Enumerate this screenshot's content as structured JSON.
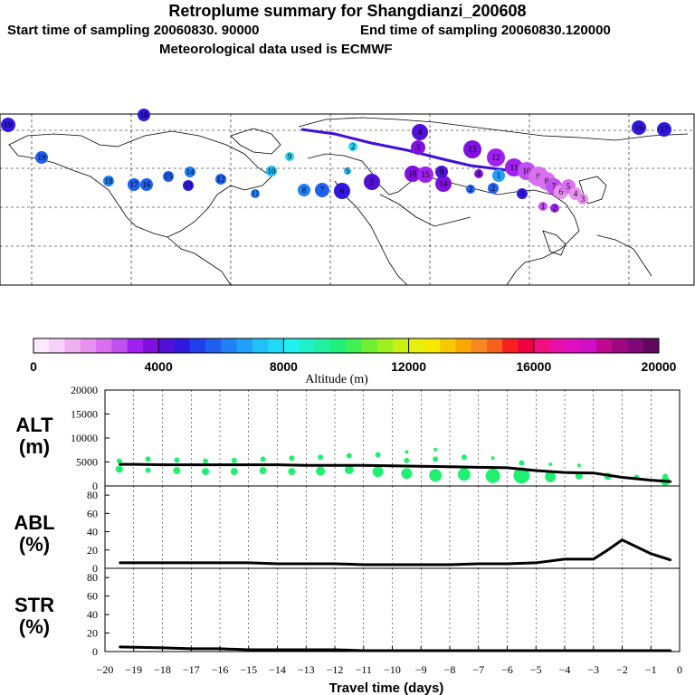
{
  "header": {
    "title": "Retroplume summary for Shangdianzi_200608",
    "start_label": "Start time of sampling 20060830. 90000",
    "end_label": "End time of sampling 20060830.120000",
    "met_label": "Meteorological data used is ECMWF"
  },
  "colorbar": {
    "label": "Altitude (m)",
    "ticks": [
      "0",
      "4000",
      "8000",
      "12000",
      "16000",
      "20000"
    ],
    "colors": [
      "#fde8fd",
      "#f9d0f9",
      "#f0b0f0",
      "#e890f0",
      "#d870f0",
      "#c050f0",
      "#a020f0",
      "#8010e0",
      "#5010d8",
      "#3018e0",
      "#2040f0",
      "#2060f0",
      "#2080f8",
      "#20a0f8",
      "#20c0f8",
      "#20d8f8",
      "#20f0f0",
      "#20f0c8",
      "#20f0a0",
      "#20f078",
      "#40f050",
      "#70f030",
      "#a0f020",
      "#c8f010",
      "#e8f010",
      "#f8e800",
      "#f8c800",
      "#f8a800",
      "#f88820",
      "#f86020",
      "#f82020",
      "#f00040",
      "#f01080",
      "#e810a8",
      "#e010c0",
      "#d010c8",
      "#c00890",
      "#a00880",
      "#800878",
      "#600860"
    ]
  },
  "map_labels": {
    "numbers": [
      "20",
      "19",
      "18",
      "17",
      "16",
      "15",
      "14",
      "13",
      "12",
      "11",
      "10",
      "9",
      "8",
      "7",
      "6",
      "5",
      "4",
      "3",
      "2",
      "1"
    ]
  },
  "chart_data": [
    {
      "type": "line",
      "panel": "ALT",
      "ylabel": "ALT\n(m)",
      "ylabel_line1": "ALT",
      "ylabel_line2": "(m)",
      "ylim": [
        0,
        20000
      ],
      "yticks": [
        "0",
        "5000",
        "10000",
        "15000",
        "20000"
      ],
      "x": [
        -19.5,
        -19,
        -18,
        -17,
        -16,
        -15,
        -14,
        -13,
        -12,
        -11,
        -10,
        -9,
        -8,
        -7,
        -6,
        -5,
        -4,
        -3,
        -2,
        -1,
        -0.3
      ],
      "values": [
        4500,
        4500,
        4400,
        4400,
        4400,
        4400,
        4400,
        4300,
        4300,
        4300,
        4200,
        4100,
        4000,
        3900,
        3800,
        3200,
        2800,
        2700,
        1800,
        1200,
        900
      ],
      "scatter_x": [
        -19.5,
        -19.5,
        -18.5,
        -18.5,
        -17.5,
        -17.5,
        -16.5,
        -16.5,
        -15.5,
        -15.5,
        -14.5,
        -14.5,
        -13.5,
        -13.5,
        -12.5,
        -12.5,
        -11.5,
        -11.5,
        -10.5,
        -10.5,
        -9.5,
        -9.5,
        -9.5,
        -8.5,
        -8.5,
        -8.5,
        -7.5,
        -7.5,
        -6.5,
        -6.5,
        -5.5,
        -5.5,
        -4.5,
        -4.5,
        -3.5,
        -3.5,
        -2.5,
        -1.5,
        -0.5,
        -0.5
      ],
      "scatter_y": [
        3500,
        5200,
        3300,
        5600,
        3200,
        5400,
        3000,
        5200,
        3000,
        5300,
        3200,
        5600,
        3000,
        5800,
        3100,
        6000,
        3400,
        6300,
        3000,
        6500,
        2600,
        5300,
        7100,
        2200,
        5600,
        7600,
        2400,
        6000,
        2100,
        5800,
        2200,
        4800,
        1900,
        4500,
        2100,
        4300,
        2000,
        1800,
        1000,
        2000
      ],
      "scatter_r": [
        4,
        3,
        3,
        3,
        4,
        3,
        4,
        3,
        4,
        3,
        4,
        3,
        4,
        3,
        5,
        3,
        5,
        3,
        6,
        3,
        6,
        3,
        2,
        7,
        3,
        2,
        7,
        3,
        8,
        2,
        9,
        3,
        6,
        2,
        4,
        2,
        4,
        3,
        5,
        3
      ]
    },
    {
      "type": "line",
      "panel": "ABL",
      "ylabel_line1": "ABL",
      "ylabel_line2": "(%)",
      "ylim": [
        0,
        90
      ],
      "yticks": [
        "0",
        "20",
        "40",
        "60",
        "80"
      ],
      "x": [
        -19.5,
        -18,
        -17,
        -16,
        -15,
        -14,
        -13,
        -12,
        -11,
        -10,
        -9,
        -8,
        -7,
        -6,
        -5,
        -4,
        -3,
        -2.5,
        -2,
        -1,
        -0.3
      ],
      "values": [
        6,
        6,
        6,
        6,
        6,
        5,
        5,
        5,
        4,
        4,
        4,
        4,
        5,
        5,
        6,
        10,
        10,
        20,
        31,
        16,
        9
      ]
    },
    {
      "type": "line",
      "panel": "STR",
      "ylabel_line1": "STR",
      "ylabel_line2": "(%)",
      "ylim": [
        0,
        90
      ],
      "yticks": [
        "0",
        "20",
        "40",
        "60",
        "80"
      ],
      "x": [
        -19.5,
        -18,
        -17,
        -16,
        -15,
        -14,
        -13,
        -12,
        -11,
        -10,
        -9,
        -8,
        -7,
        -6,
        -5,
        -4,
        -3,
        -2,
        -1,
        -0.3
      ],
      "values": [
        5,
        4,
        3,
        3,
        2,
        2,
        2,
        2,
        1,
        1,
        1,
        1,
        1,
        1,
        1,
        1,
        1,
        1,
        1,
        1
      ]
    }
  ],
  "xaxis": {
    "label": "Travel time (days)",
    "ticks": [
      "−20",
      "−19",
      "−18",
      "−17",
      "−16",
      "−15",
      "−14",
      "−13",
      "−12",
      "−11",
      "−10",
      "−9",
      "−8",
      "−7",
      "−6",
      "−5",
      "−4",
      "−3",
      "−2",
      "−1",
      "0"
    ]
  }
}
